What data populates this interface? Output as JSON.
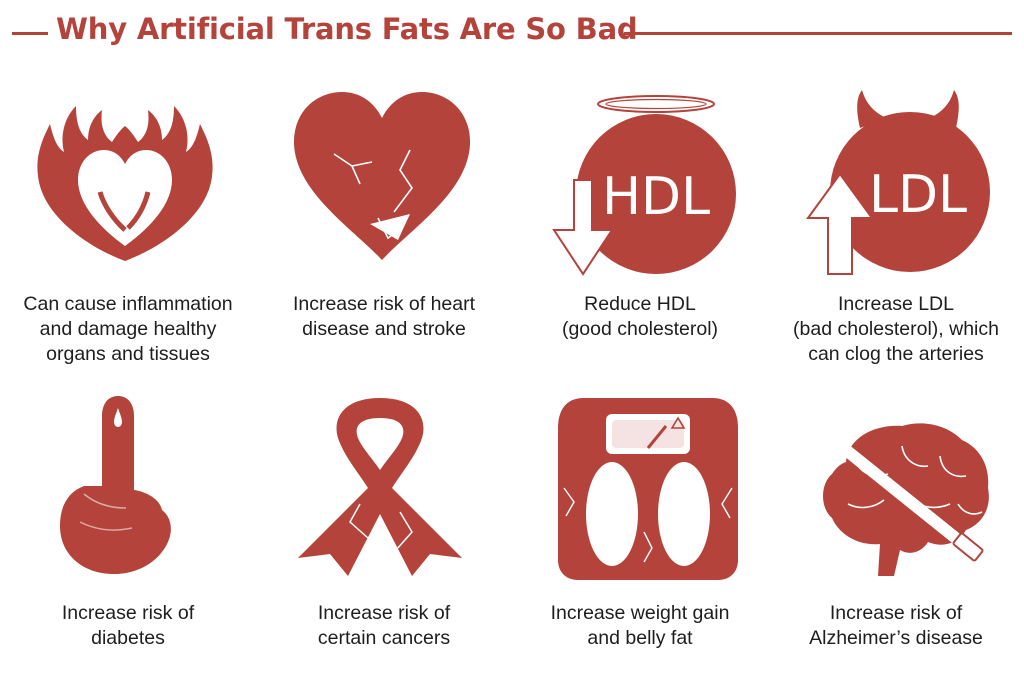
{
  "header": {
    "title": "Why Artificial Trans Fats Are So Bad"
  },
  "colors": {
    "accent": "#b3433b",
    "text": "#1e1e1e",
    "background": "#ffffff"
  },
  "items": [
    {
      "icon": "flaming-heart-icon",
      "caption": "Can cause inflammation\nand damage healthy\norgans and tissues"
    },
    {
      "icon": "cracked-heart-icon",
      "caption": "Increase risk of heart\ndisease and stroke"
    },
    {
      "icon": "hdl-halo-icon",
      "label": "HDL",
      "caption": "Reduce HDL\n(good cholesterol)"
    },
    {
      "icon": "ldl-devil-icon",
      "label": "LDL",
      "caption": "Increase LDL\n(bad cholesterol), which\ncan clog the arteries"
    },
    {
      "icon": "finger-drop-icon",
      "caption": "Increase risk of\ndiabetes"
    },
    {
      "icon": "cancer-ribbon-icon",
      "caption": "Increase risk of\ncertain cancers"
    },
    {
      "icon": "weight-scale-icon",
      "caption": "Increase weight gain\nand belly fat"
    },
    {
      "icon": "brain-icon",
      "caption": "Increase risk of\nAlzheimer’s disease"
    }
  ]
}
